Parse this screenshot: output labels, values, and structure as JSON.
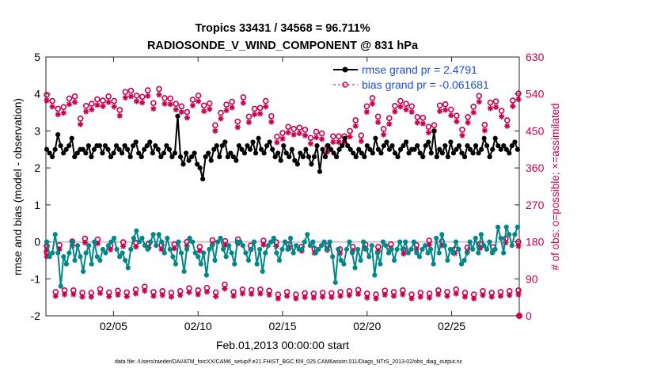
{
  "chart_data": {
    "type": "line",
    "title": "Tropics 33431 / 34568 = 96.711%",
    "subtitle": "RADIOSONDE_V_WIND_COMPONENT @ 831 hPa",
    "xlabel": "Feb.01,2013 00:00:00 start",
    "ylabel_left": "rmse and bias (model - observation)",
    "ylabel_right": "# of obs: o=possible; ×=assimilated",
    "footer": "data file: /Users/raeder/DAI/ATM_forcXX/CAM6_setup/f.e21.FHIST_BGC.f09_025.CAM6assim.011/Diags_NTrS_2013-02/obs_diag_output.nc",
    "ylim_left": [
      -2,
      5
    ],
    "ylim_right": [
      0,
      630
    ],
    "xlim_days": [
      1.0,
      29.0
    ],
    "x_ticks": [
      {
        "day": 5,
        "label": "02/05"
      },
      {
        "day": 10,
        "label": "02/10"
      },
      {
        "day": 15,
        "label": "02/15"
      },
      {
        "day": 20,
        "label": "02/20"
      },
      {
        "day": 25,
        "label": "02/25"
      }
    ],
    "y_ticks_left": [
      "-2",
      "-1",
      "0",
      "1",
      "2",
      "3",
      "4",
      "5"
    ],
    "y_ticks_right": [
      "0",
      "90",
      "180",
      "270",
      "360",
      "450",
      "540",
      "630"
    ],
    "legend_location": "top-right",
    "colors": {
      "rmse": "#000000",
      "bias": "#00878a",
      "obs": "#c8004e",
      "zero_line": "#c8c8c8",
      "legend_text": "#1f4fd6"
    },
    "series": [
      {
        "name": "rmse",
        "legend": "rmse grand pr = 2.4791",
        "values": [
          2.5,
          2.4,
          2.3,
          2.5,
          2.9,
          2.6,
          2.4,
          2.5,
          2.6,
          2.8,
          2.3,
          2.4,
          2.5,
          2.5,
          2.4,
          2.6,
          2.3,
          2.5,
          2.6,
          2.6,
          2.4,
          2.6,
          2.5,
          2.3,
          2.4,
          2.6,
          2.5,
          2.4,
          2.6,
          2.5,
          2.3,
          2.6,
          2.7,
          2.4,
          2.3,
          2.5,
          2.6,
          2.7,
          2.4,
          2.6,
          2.5,
          2.3,
          2.4,
          2.6,
          2.5,
          2.3,
          2.4,
          3.4,
          2.3,
          2.1,
          2.4,
          2.2,
          2.3,
          2.4,
          2.1,
          2.0,
          1.7,
          2.3,
          2.4,
          2.2,
          2.5,
          2.6,
          2.3,
          2.6,
          2.7,
          2.3,
          2.4,
          2.3,
          2.2,
          2.6,
          2.5,
          2.4,
          2.6,
          2.5,
          2.7,
          2.4,
          2.8,
          2.5,
          2.4,
          2.6,
          2.7,
          2.5,
          2.3,
          2.4,
          2.2,
          2.6,
          2.4,
          2.3,
          2.5,
          2.2,
          2.1,
          2.4,
          2.3,
          2.5,
          2.3,
          2.1,
          2.3,
          2.6,
          1.9,
          2.5,
          2.3,
          2.6,
          2.5,
          2.4,
          2.3,
          2.5,
          2.6,
          2.8,
          2.6,
          2.5,
          2.4,
          2.3,
          2.5,
          2.4,
          2.3,
          2.6,
          2.5,
          2.4,
          2.8,
          2.5,
          2.4,
          2.6,
          2.7,
          2.5,
          2.6,
          2.4,
          2.3,
          2.5,
          2.6,
          2.7,
          2.4,
          2.5,
          2.5,
          2.6,
          2.4,
          2.3,
          2.6,
          2.7,
          2.4,
          3.0,
          2.3,
          2.5,
          2.4,
          2.6,
          2.3,
          2.7,
          2.4,
          2.5,
          2.6,
          2.4,
          2.3,
          2.6,
          2.5,
          2.4,
          2.6,
          2.4,
          2.5,
          2.8,
          2.6,
          2.3,
          2.5,
          2.8,
          2.6,
          2.5,
          2.6,
          2.5,
          2.4,
          2.6,
          2.7,
          2.5
        ]
      },
      {
        "name": "bias",
        "legend": "bias grand pr = -0.061681",
        "values": [
          0.0,
          -0.4,
          -0.3,
          0.2,
          -0.3,
          -1.2,
          -0.4,
          -0.6,
          -0.3,
          0.0,
          -0.5,
          -0.1,
          -0.4,
          -0.8,
          -0.3,
          -0.1,
          -0.6,
          0.0,
          -0.4,
          -0.5,
          -0.2,
          -0.3,
          -0.1,
          0.0,
          0.1,
          -0.2,
          -0.4,
          -0.3,
          -0.5,
          -0.7,
          -0.2,
          0.1,
          0.3,
          0.0,
          0.1,
          -0.1,
          -0.2,
          0.0,
          0.2,
          -0.1,
          0.2,
          0.0,
          -0.3,
          0.1,
          -0.2,
          -0.4,
          -0.6,
          0.0,
          -0.3,
          -0.8,
          -0.2,
          0.1,
          0.0,
          -0.3,
          -0.4,
          -0.6,
          -0.3,
          -0.9,
          -0.2,
          -0.1,
          -0.5,
          0.0,
          0.1,
          -0.2,
          -0.4,
          -0.1,
          -0.3,
          -0.6,
          0.0,
          0.0,
          -0.1,
          -0.3,
          -0.5,
          -0.2,
          0.0,
          -0.6,
          -0.2,
          -0.8,
          -0.3,
          -0.1,
          0.0,
          0.1,
          -0.3,
          -0.5,
          -0.2,
          0.0,
          -0.2,
          0.1,
          -0.3,
          -0.1,
          -0.2,
          -0.2,
          0.0,
          0.2,
          -0.1,
          0.0,
          -0.3,
          -0.2,
          -0.1,
          0.0,
          -0.2,
          0.0,
          -0.4,
          -1.1,
          -0.2,
          -0.5,
          -0.6,
          -0.2,
          0.0,
          -0.3,
          -0.7,
          -0.2,
          -0.5,
          0.0,
          -0.2,
          -0.4,
          -0.1,
          -0.9,
          -0.3,
          -0.6,
          0.0,
          -0.1,
          -0.3,
          -0.2,
          -0.5,
          -0.2,
          0.0,
          -0.2,
          0.0,
          -0.3,
          -0.2,
          0.0,
          -0.3,
          -0.4,
          -0.2,
          -0.1,
          -0.3,
          -0.2,
          -0.6,
          0.1,
          -0.3,
          0.2,
          -0.1,
          -0.5,
          -0.2,
          -0.3,
          0.0,
          -0.2,
          -0.6,
          -0.5,
          -0.3,
          0.0,
          -0.2,
          0.1,
          -0.3,
          0.2,
          -0.1,
          -0.2,
          0.0,
          -0.3,
          -0.2,
          0.4,
          0.1,
          -0.3,
          0.4,
          0.2,
          -0.1,
          0.2,
          0.4
        ]
      }
    ],
    "obs_possible_upper": [
      538,
      523,
      504,
      508,
      529,
      534,
      480,
      511,
      516,
      527,
      524,
      534,
      523,
      501,
      545,
      548,
      536,
      533,
      549,
      518,
      552,
      530,
      529,
      516,
      510,
      496,
      526,
      536,
      512,
      517,
      464,
      494,
      514,
      521,
      473,
      532,
      485,
      504,
      506,
      523,
      486,
      436,
      445,
      460,
      455,
      458,
      453,
      433,
      448,
      444,
      413,
      437,
      437,
      437,
      450,
      476,
      439,
      510,
      530,
      485,
      455,
      481,
      511,
      523,
      516,
      510,
      484,
      482,
      460,
      464,
      512,
      515,
      502,
      487,
      453,
      484,
      509,
      535,
      465,
      519,
      522,
      499,
      476,
      524,
      541
    ],
    "obs_assim_upper": [
      524,
      509,
      490,
      494,
      515,
      520,
      466,
      497,
      502,
      513,
      510,
      520,
      509,
      487,
      531,
      534,
      522,
      519,
      535,
      504,
      538,
      516,
      515,
      502,
      496,
      482,
      512,
      522,
      498,
      503,
      450,
      480,
      500,
      507,
      459,
      518,
      471,
      490,
      492,
      509,
      472,
      422,
      431,
      446,
      441,
      444,
      439,
      419,
      434,
      430,
      399,
      423,
      423,
      423,
      436,
      462,
      425,
      496,
      516,
      471,
      441,
      467,
      497,
      509,
      502,
      496,
      470,
      468,
      446,
      450,
      498,
      501,
      488,
      473,
      439,
      470,
      495,
      521,
      451,
      505,
      508,
      485,
      462,
      510,
      527
    ],
    "obs_possible_lower": [
      155,
      58,
      62,
      62,
      56,
      56,
      65,
      57,
      61,
      57,
      64,
      71,
      58,
      60,
      56,
      60,
      67,
      62,
      68,
      57,
      76,
      58,
      64,
      63,
      64,
      61,
      52,
      58,
      52,
      55,
      54,
      56,
      55,
      58,
      60,
      63,
      54,
      52,
      61,
      58,
      62,
      52,
      56,
      54,
      62,
      58,
      64,
      56,
      52,
      60,
      56,
      58,
      60,
      62
    ],
    "obs_assim_lower": [
      145,
      48,
      52,
      52,
      46,
      46,
      55,
      47,
      51,
      47,
      54,
      61,
      48,
      50,
      46,
      50,
      57,
      52,
      58,
      47,
      66,
      48,
      54,
      53,
      54,
      51,
      42,
      48,
      42,
      45,
      44,
      46,
      45,
      48,
      50,
      53,
      44,
      42,
      51,
      48,
      52,
      42,
      46,
      44,
      52,
      48,
      54,
      46,
      42,
      50,
      46,
      48,
      50,
      52
    ],
    "obs_possible_mid": [
      170,
      172,
      181,
      188,
      186,
      171,
      179,
      178,
      176,
      172,
      174,
      180,
      168,
      184,
      182,
      186,
      171,
      183,
      179,
      174,
      168,
      163,
      170,
      162,
      168,
      173,
      168,
      174,
      161,
      172,
      183,
      181,
      162,
      166,
      175,
      167,
      188,
      180
    ],
    "obs_assim_mid": [
      160,
      162,
      171,
      178,
      176,
      161,
      169,
      168,
      166,
      162,
      164,
      170,
      158,
      174,
      172,
      176,
      161,
      173,
      169,
      164,
      158,
      153,
      160,
      152,
      158,
      163,
      158,
      164,
      151,
      162,
      173,
      171,
      152,
      156,
      165,
      157,
      178,
      170
    ]
  }
}
